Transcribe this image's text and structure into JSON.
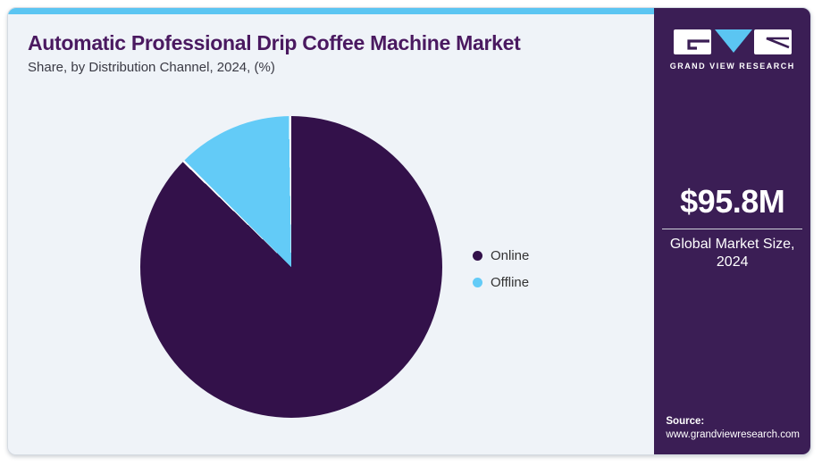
{
  "header": {
    "title": "Automatic Professional Drip Coffee Machine Market",
    "subtitle": "Share, by Distribution Channel, 2024, (%)"
  },
  "chart_data": {
    "type": "pie",
    "title": "Automatic Professional Drip Coffee Machine Market Share, by Distribution Channel, 2024, (%)",
    "units": "%",
    "start_angle_deg": 0,
    "direction": "clockwise",
    "legend_position": "right",
    "segments": [
      {
        "label": "Online",
        "value": 87.5,
        "color": "#33114a"
      },
      {
        "label": "Offline",
        "value": 12.5,
        "color": "#63cbf7"
      }
    ]
  },
  "sidebar": {
    "logo_text": "GRAND VIEW RESEARCH",
    "market_size_value": "$95.8M",
    "market_size_label_line1": "Global Market Size,",
    "market_size_label_line2": "2024",
    "source_label": "Source:",
    "source_url": "www.grandviewresearch.com"
  },
  "theme": {
    "accent_blue": "#5bc5f2",
    "panel_background": "#eff3f8",
    "sidebar_background": "#3b1e55",
    "title_color": "#4a1960",
    "pie_separator": "#ffffff"
  }
}
